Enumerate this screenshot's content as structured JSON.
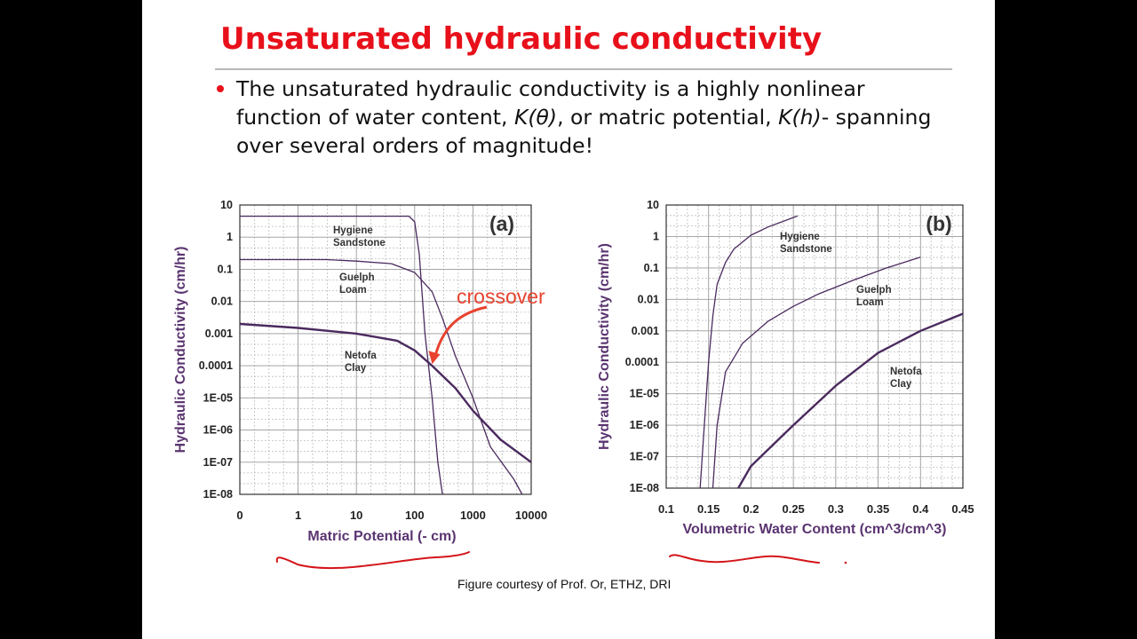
{
  "slide": {
    "title": "Unsaturated hydraulic conductivity",
    "bullet": {
      "line1": "The unsaturated hydraulic conductivity is a highly nonlinear",
      "line2_pre": "function of water content, ",
      "line2_k_theta": "K(θ)",
      "line2_mid": ", or matric potential, ",
      "line2_k_h": "K(h)",
      "line2_post": "- spanning",
      "line3": "over several orders of magnitude!"
    },
    "caption": "Figure courtesy of Prof. Or, ETHZ, DRI",
    "colors": {
      "title": "#e8101a",
      "bullet": "#e8101a",
      "curve": "#4a2a5e",
      "axis_text": "#5a3470",
      "annotation": "#e8432f",
      "grid": "#bdbdbd",
      "handwriting": "#d41418"
    }
  },
  "chart_data": [
    {
      "type": "line",
      "panel_label": "(a)",
      "xlabel": "Matric Potential (- cm)",
      "ylabel": "Hydraulic Conductivity (cm/hr)",
      "x_scale": "log",
      "y_scale": "log",
      "x_ticks": [
        "0",
        "1",
        "10",
        "100",
        "1000",
        "10000"
      ],
      "y_ticks": [
        "10",
        "1",
        "0.1",
        "0.01",
        "0.001",
        "0.0001",
        "1E-05",
        "1E-06",
        "1E-07",
        "1E-08"
      ],
      "xlim": [
        0.1,
        10000
      ],
      "ylim": [
        1e-08,
        10
      ],
      "grid": true,
      "series": [
        {
          "label": [
            "Hygiene",
            "Sandstone"
          ],
          "x": [
            0.1,
            80,
            100,
            120,
            150,
            200,
            250,
            300
          ],
          "y": [
            4.5,
            4.5,
            3,
            0.3,
            0.001,
            1e-05,
            1e-07,
            1e-08
          ]
        },
        {
          "label": [
            "Guelph",
            "Loam"
          ],
          "x": [
            0.1,
            3,
            10,
            40,
            100,
            200,
            300,
            500,
            1000,
            2000,
            5000,
            7000
          ],
          "y": [
            0.2,
            0.2,
            0.18,
            0.15,
            0.08,
            0.02,
            0.003,
            0.0002,
            1e-05,
            3e-07,
            3e-08,
            1e-08
          ]
        },
        {
          "label": [
            "Netofa",
            "Clay"
          ],
          "x": [
            0.1,
            1,
            10,
            50,
            100,
            200,
            500,
            1000,
            3000,
            10000
          ],
          "y": [
            0.002,
            0.0015,
            0.001,
            0.0006,
            0.0003,
            0.0001,
            2e-05,
            4e-06,
            5e-07,
            1e-07
          ]
        }
      ],
      "annotation": {
        "text": "crossover",
        "x": 200,
        "y": 0.00012
      }
    },
    {
      "type": "line",
      "panel_label": "(b)",
      "xlabel": "Volumetric Water Content (cm^3/cm^3)",
      "ylabel": "Hydraulic Conductivity (cm/hr)",
      "x_scale": "linear",
      "y_scale": "log",
      "x_ticks": [
        "0.1",
        "0.15",
        "0.2",
        "0.25",
        "0.3",
        "0.35",
        "0.4",
        "0.45"
      ],
      "y_ticks": [
        "10",
        "1",
        "0.1",
        "0.01",
        "0.001",
        "0.0001",
        "1E-05",
        "1E-06",
        "1E-07",
        "1E-08"
      ],
      "xlim": [
        0.1,
        0.45
      ],
      "ylim": [
        1e-08,
        10
      ],
      "grid": true,
      "series": [
        {
          "label": [
            "Hygiene",
            "Sandstone"
          ],
          "x": [
            0.14,
            0.145,
            0.15,
            0.155,
            0.16,
            0.17,
            0.18,
            0.2,
            0.22,
            0.255
          ],
          "y": [
            1e-08,
            1e-06,
            0.0001,
            0.003,
            0.03,
            0.15,
            0.4,
            1.1,
            2,
            4.5
          ]
        },
        {
          "label": [
            "Guelph",
            "Loam"
          ],
          "x": [
            0.155,
            0.16,
            0.17,
            0.19,
            0.22,
            0.25,
            0.28,
            0.32,
            0.36,
            0.4
          ],
          "y": [
            1e-08,
            1e-06,
            5e-05,
            0.0004,
            0.002,
            0.006,
            0.015,
            0.04,
            0.1,
            0.22
          ]
        },
        {
          "label": [
            "Netofa",
            "Clay"
          ],
          "x": [
            0.185,
            0.2,
            0.25,
            0.3,
            0.35,
            0.4,
            0.45
          ],
          "y": [
            1e-08,
            5e-08,
            1e-06,
            1.8e-05,
            0.0002,
            0.001,
            0.0035
          ]
        }
      ]
    }
  ]
}
